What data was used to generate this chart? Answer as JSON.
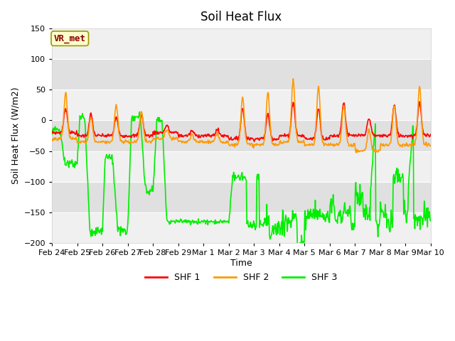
{
  "title": "Soil Heat Flux",
  "ylabel": "Soil Heat Flux (W/m2)",
  "xlabel": "Time",
  "ylim": [
    -200,
    150
  ],
  "yticks": [
    -200,
    -150,
    -100,
    -50,
    0,
    50,
    100,
    150
  ],
  "background_color": "#ffffff",
  "plot_bg_color": "#e8e8e8",
  "plot_bg_color2": "#f5f5f5",
  "legend_label": "VR_met",
  "series_labels": [
    "SHF 1",
    "SHF 2",
    "SHF 3"
  ],
  "series_colors": [
    "#ff0000",
    "#ff9900",
    "#00ee00"
  ],
  "line_width": 1.2,
  "xtick_labels": [
    "Feb 24",
    "Feb 25",
    "Feb 26",
    "Feb 27",
    "Feb 28",
    "Feb 29",
    "Mar 1",
    "Mar 2",
    "Mar 3",
    "Mar 4",
    "Mar 5",
    "Mar 6",
    "Mar 7",
    "Mar 8",
    "Mar 9",
    "Mar 10"
  ],
  "n_days": 15
}
